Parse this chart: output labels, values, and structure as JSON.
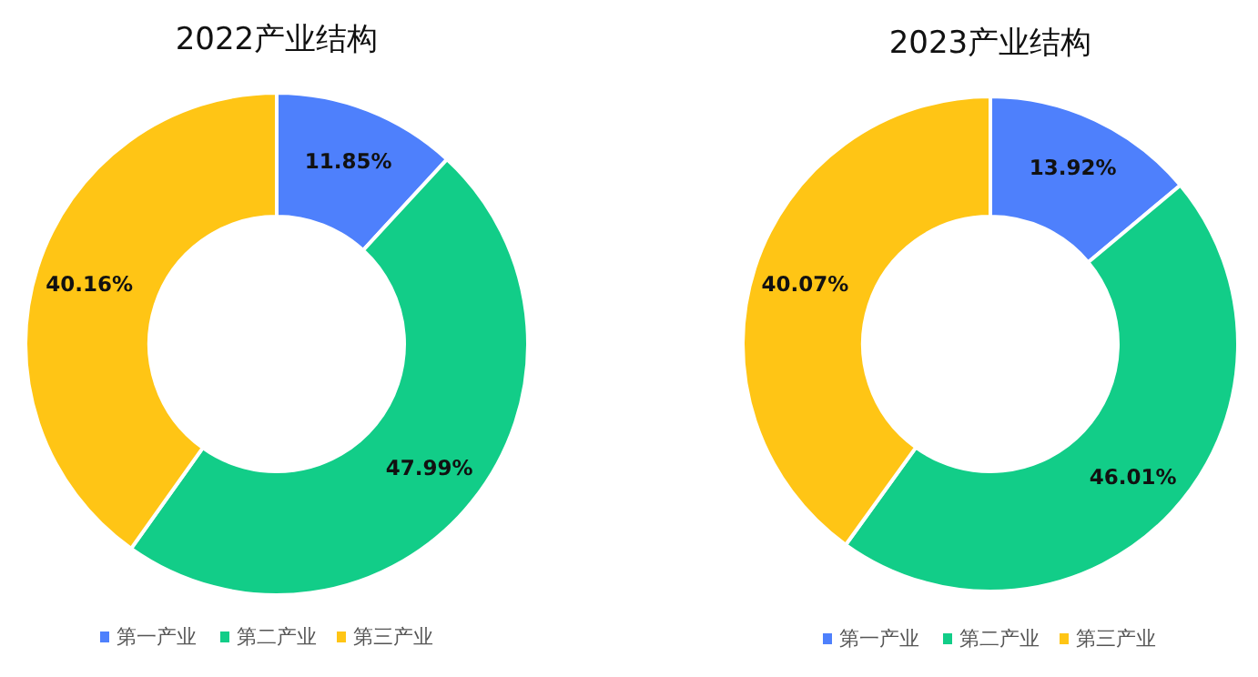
{
  "chart_data": [
    {
      "type": "donut",
      "title": "2022产业结构",
      "categories": [
        "第一产业",
        "第二产业",
        "第三产业"
      ],
      "values": [
        11.85,
        47.99,
        40.16
      ],
      "colors": [
        "#4e80fc",
        "#12cd88",
        "#ffc515"
      ],
      "value_labels": [
        "11.85%",
        "47.99%",
        "40.16%"
      ],
      "legend": "bottom"
    },
    {
      "type": "donut",
      "title": "2023产业结构",
      "categories": [
        "第一产业",
        "第二产业",
        "第三产业"
      ],
      "values": [
        13.92,
        46.01,
        40.07
      ],
      "colors": [
        "#4e80fc",
        "#12cd88",
        "#ffc515"
      ],
      "value_labels": [
        "13.92%",
        "46.01%",
        "40.07%"
      ],
      "legend": "bottom"
    }
  ]
}
